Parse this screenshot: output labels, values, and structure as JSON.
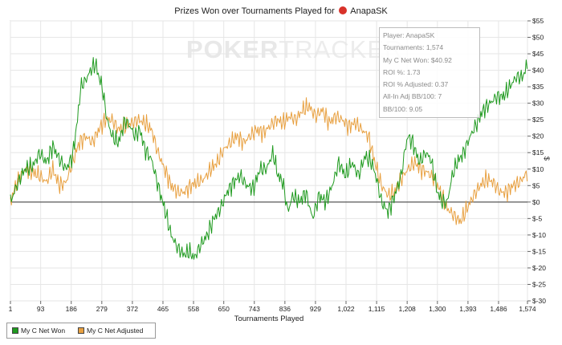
{
  "chart_data": {
    "type": "line",
    "title": "Prizes Won over Tournaments Played for",
    "player_name": "AnapaSK",
    "watermark": {
      "poker": "POKER",
      "tracker": "TRACKER"
    },
    "xlabel": "Tournaments Played",
    "ylabel": "$",
    "xlim": [
      1,
      1574
    ],
    "ylim": [
      -30,
      55
    ],
    "xticks": [
      1,
      93,
      186,
      279,
      372,
      465,
      558,
      650,
      743,
      836,
      929,
      1022,
      1115,
      1208,
      1300,
      1393,
      1486,
      1574
    ],
    "xtick_labels": [
      "1",
      "93",
      "186",
      "279",
      "372",
      "465",
      "558",
      "650",
      "743",
      "836",
      "929",
      "1,022",
      "1,115",
      "1,208",
      "1,300",
      "1,393",
      "1,486",
      "1,574"
    ],
    "yticks": [
      -30,
      -25,
      -20,
      -15,
      -10,
      -5,
      0,
      5,
      10,
      15,
      20,
      25,
      30,
      35,
      40,
      45,
      50,
      55
    ],
    "ytick_labels": [
      "$-30",
      "$-25",
      "$-20",
      "$-15",
      "$-10",
      "$-5",
      "$0",
      "$5",
      "$10",
      "$15",
      "$20",
      "$25",
      "$30",
      "$35",
      "$40",
      "$45",
      "$50",
      "$55"
    ],
    "series": [
      {
        "name": "My C Net Won",
        "color": "#1f9a1f",
        "x": [
          1,
          20,
          45,
          70,
          90,
          110,
          130,
          150,
          170,
          190,
          205,
          215,
          230,
          245,
          260,
          270,
          280,
          295,
          310,
          330,
          350,
          365,
          380,
          395,
          410,
          430,
          450,
          470,
          490,
          510,
          530,
          545,
          560,
          580,
          600,
          620,
          640,
          660,
          680,
          700,
          720,
          740,
          760,
          780,
          800,
          815,
          830,
          845,
          860,
          880,
          900,
          920,
          940,
          960,
          980,
          1000,
          1020,
          1040,
          1060,
          1080,
          1100,
          1115,
          1130,
          1150,
          1170,
          1190,
          1200,
          1210,
          1225,
          1245,
          1265,
          1280,
          1300,
          1315,
          1330,
          1345,
          1360,
          1380,
          1400,
          1420,
          1440,
          1460,
          1480,
          1500,
          1520,
          1540,
          1560,
          1574
        ],
        "y": [
          0,
          5,
          10,
          11,
          15,
          12,
          17,
          13,
          10,
          14,
          25,
          35,
          37,
          40,
          42,
          38,
          35,
          25,
          20,
          18,
          25,
          23,
          20,
          22,
          16,
          13,
          5,
          -2,
          -10,
          -14,
          -16,
          -15,
          -17,
          -13,
          -10,
          -5,
          -2,
          3,
          6,
          8,
          5,
          4,
          10,
          10,
          15,
          8,
          6,
          -3,
          2,
          0,
          3,
          -5,
          2,
          0,
          5,
          12,
          8,
          12,
          8,
          14,
          12,
          7,
          0,
          -3,
          2,
          8,
          15,
          20,
          18,
          12,
          15,
          13,
          3,
          0,
          0,
          8,
          12,
          15,
          20,
          24,
          28,
          30,
          32,
          32,
          35,
          38,
          38,
          42
        ]
      },
      {
        "name": "My C Net Adjusted",
        "color": "#e8a040",
        "x": [
          1,
          20,
          45,
          70,
          90,
          110,
          130,
          150,
          170,
          190,
          210,
          230,
          250,
          270,
          290,
          310,
          330,
          350,
          370,
          390,
          410,
          430,
          450,
          470,
          490,
          510,
          530,
          550,
          570,
          590,
          610,
          630,
          650,
          670,
          690,
          710,
          730,
          750,
          770,
          790,
          810,
          830,
          850,
          870,
          890,
          910,
          930,
          950,
          970,
          990,
          1010,
          1030,
          1050,
          1070,
          1090,
          1110,
          1130,
          1150,
          1170,
          1190,
          1210,
          1230,
          1250,
          1270,
          1290,
          1310,
          1330,
          1350,
          1370,
          1390,
          1410,
          1430,
          1450,
          1470,
          1490,
          1510,
          1530,
          1550,
          1574
        ],
        "y": [
          0,
          6,
          10,
          9,
          8,
          6,
          10,
          5,
          6,
          12,
          18,
          20,
          18,
          22,
          25,
          25,
          22,
          23,
          24,
          25,
          24,
          22,
          15,
          10,
          5,
          3,
          3,
          5,
          6,
          7,
          10,
          12,
          16,
          18,
          20,
          18,
          20,
          22,
          21,
          23,
          25,
          24,
          26,
          25,
          28,
          29,
          26,
          28,
          24,
          26,
          25,
          23,
          24,
          22,
          20,
          12,
          5,
          2,
          3,
          7,
          10,
          12,
          10,
          9,
          7,
          3,
          -2,
          -4,
          -6,
          -2,
          2,
          5,
          7,
          6,
          3,
          3,
          5,
          6,
          9
        ]
      }
    ],
    "legend": {
      "placement": "bottom-left"
    }
  },
  "stats_box": {
    "player": "Player: AnapaSK",
    "tournaments": "Tournaments: 1,574",
    "net_won": "My C Net Won: $40.92",
    "roi": "ROI %: 1.73",
    "roi_adjusted": "ROI % Adjusted: 0.37",
    "allin_bb100": "All-In Adj BB/100: 7",
    "bb100": "BB/100: 9.05"
  },
  "legend_labels": {
    "won": "My C Net Won",
    "adjusted": "My C Net Adjusted"
  }
}
